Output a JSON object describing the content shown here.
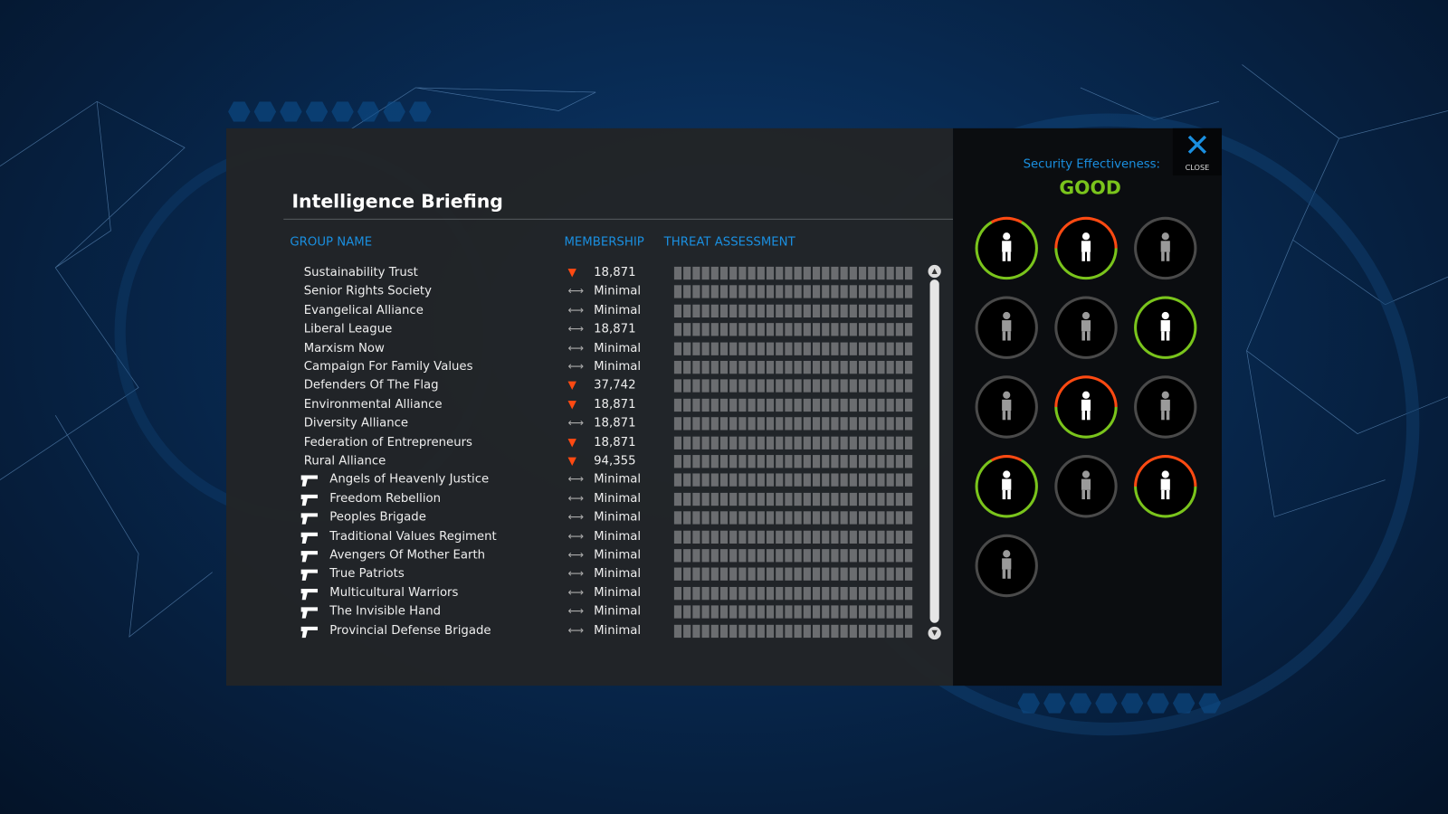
{
  "panel": {
    "title": "Intelligence Briefing",
    "columns": {
      "group_name": "GROUP NAME",
      "membership": "MEMBERSHIP",
      "threat": "THREAT ASSESSMENT"
    },
    "groups": [
      {
        "name": "Sustainability Trust",
        "trend": "down",
        "membership": "18,871",
        "armed": false,
        "threat_level": 0
      },
      {
        "name": "Senior Rights Society",
        "trend": "stable",
        "membership": "Minimal",
        "armed": false,
        "threat_level": 0
      },
      {
        "name": "Evangelical Alliance",
        "trend": "stable",
        "membership": "Minimal",
        "armed": false,
        "threat_level": 0
      },
      {
        "name": "Liberal League",
        "trend": "stable",
        "membership": "18,871",
        "armed": false,
        "threat_level": 0
      },
      {
        "name": "Marxism Now",
        "trend": "stable",
        "membership": "Minimal",
        "armed": false,
        "threat_level": 0
      },
      {
        "name": "Campaign For Family Values",
        "trend": "stable",
        "membership": "Minimal",
        "armed": false,
        "threat_level": 0
      },
      {
        "name": "Defenders Of The Flag",
        "trend": "down",
        "membership": "37,742",
        "armed": false,
        "threat_level": 0
      },
      {
        "name": "Environmental Alliance",
        "trend": "down",
        "membership": "18,871",
        "armed": false,
        "threat_level": 0
      },
      {
        "name": "Diversity Alliance",
        "trend": "stable",
        "membership": "18,871",
        "armed": false,
        "threat_level": 0
      },
      {
        "name": "Federation of Entrepreneurs",
        "trend": "down",
        "membership": "18,871",
        "armed": false,
        "threat_level": 0
      },
      {
        "name": "Rural Alliance",
        "trend": "down",
        "membership": "94,355",
        "armed": false,
        "threat_level": 0
      },
      {
        "name": "Angels of Heavenly Justice",
        "trend": "stable",
        "membership": "Minimal",
        "armed": true,
        "threat_level": 0
      },
      {
        "name": "Freedom Rebellion",
        "trend": "stable",
        "membership": "Minimal",
        "armed": true,
        "threat_level": 0
      },
      {
        "name": "Peoples Brigade",
        "trend": "stable",
        "membership": "Minimal",
        "armed": true,
        "threat_level": 0
      },
      {
        "name": "Traditional Values Regiment",
        "trend": "stable",
        "membership": "Minimal",
        "armed": true,
        "threat_level": 0
      },
      {
        "name": "Avengers Of Mother Earth",
        "trend": "stable",
        "membership": "Minimal",
        "armed": true,
        "threat_level": 0
      },
      {
        "name": "True Patriots",
        "trend": "stable",
        "membership": "Minimal",
        "armed": true,
        "threat_level": 0
      },
      {
        "name": "Multicultural Warriors",
        "trend": "stable",
        "membership": "Minimal",
        "armed": true,
        "threat_level": 0
      },
      {
        "name": "The Invisible Hand",
        "trend": "stable",
        "membership": "Minimal",
        "armed": true,
        "threat_level": 0
      },
      {
        "name": "Provincial Defense Brigade",
        "trend": "stable",
        "membership": "Minimal",
        "armed": true,
        "threat_level": 0
      }
    ]
  },
  "side": {
    "label": "Security Effectiveness:",
    "value": "GOOD",
    "close": "CLOSE",
    "policies": [
      {
        "icon": "armed-guard-icon",
        "state": "green-red-top"
      },
      {
        "icon": "surveillance-camera-icon",
        "state": "red-green"
      },
      {
        "icon": "guard-curfew-icon",
        "state": "inactive"
      },
      {
        "icon": "prison-icon",
        "state": "inactive"
      },
      {
        "icon": "id-card-icon",
        "state": "inactive"
      },
      {
        "icon": "special-forces-icon",
        "state": "green"
      },
      {
        "icon": "microchip-person-icon",
        "state": "inactive"
      },
      {
        "icon": "phone-tap-icon",
        "state": "red-green"
      },
      {
        "icon": "drone-icon",
        "state": "inactive"
      },
      {
        "icon": "lethal-injection-icon",
        "state": "green-red-top"
      },
      {
        "icon": "gag-law-icon",
        "state": "inactive"
      },
      {
        "icon": "taser-icon",
        "state": "red-green"
      },
      {
        "icon": "border-checkpoint-icon",
        "state": "inactive"
      }
    ]
  },
  "colors": {
    "accent": "#1a8fe0",
    "good": "#7ac41c",
    "alert": "#ff4a12",
    "inactive": "#4a4a4a"
  }
}
